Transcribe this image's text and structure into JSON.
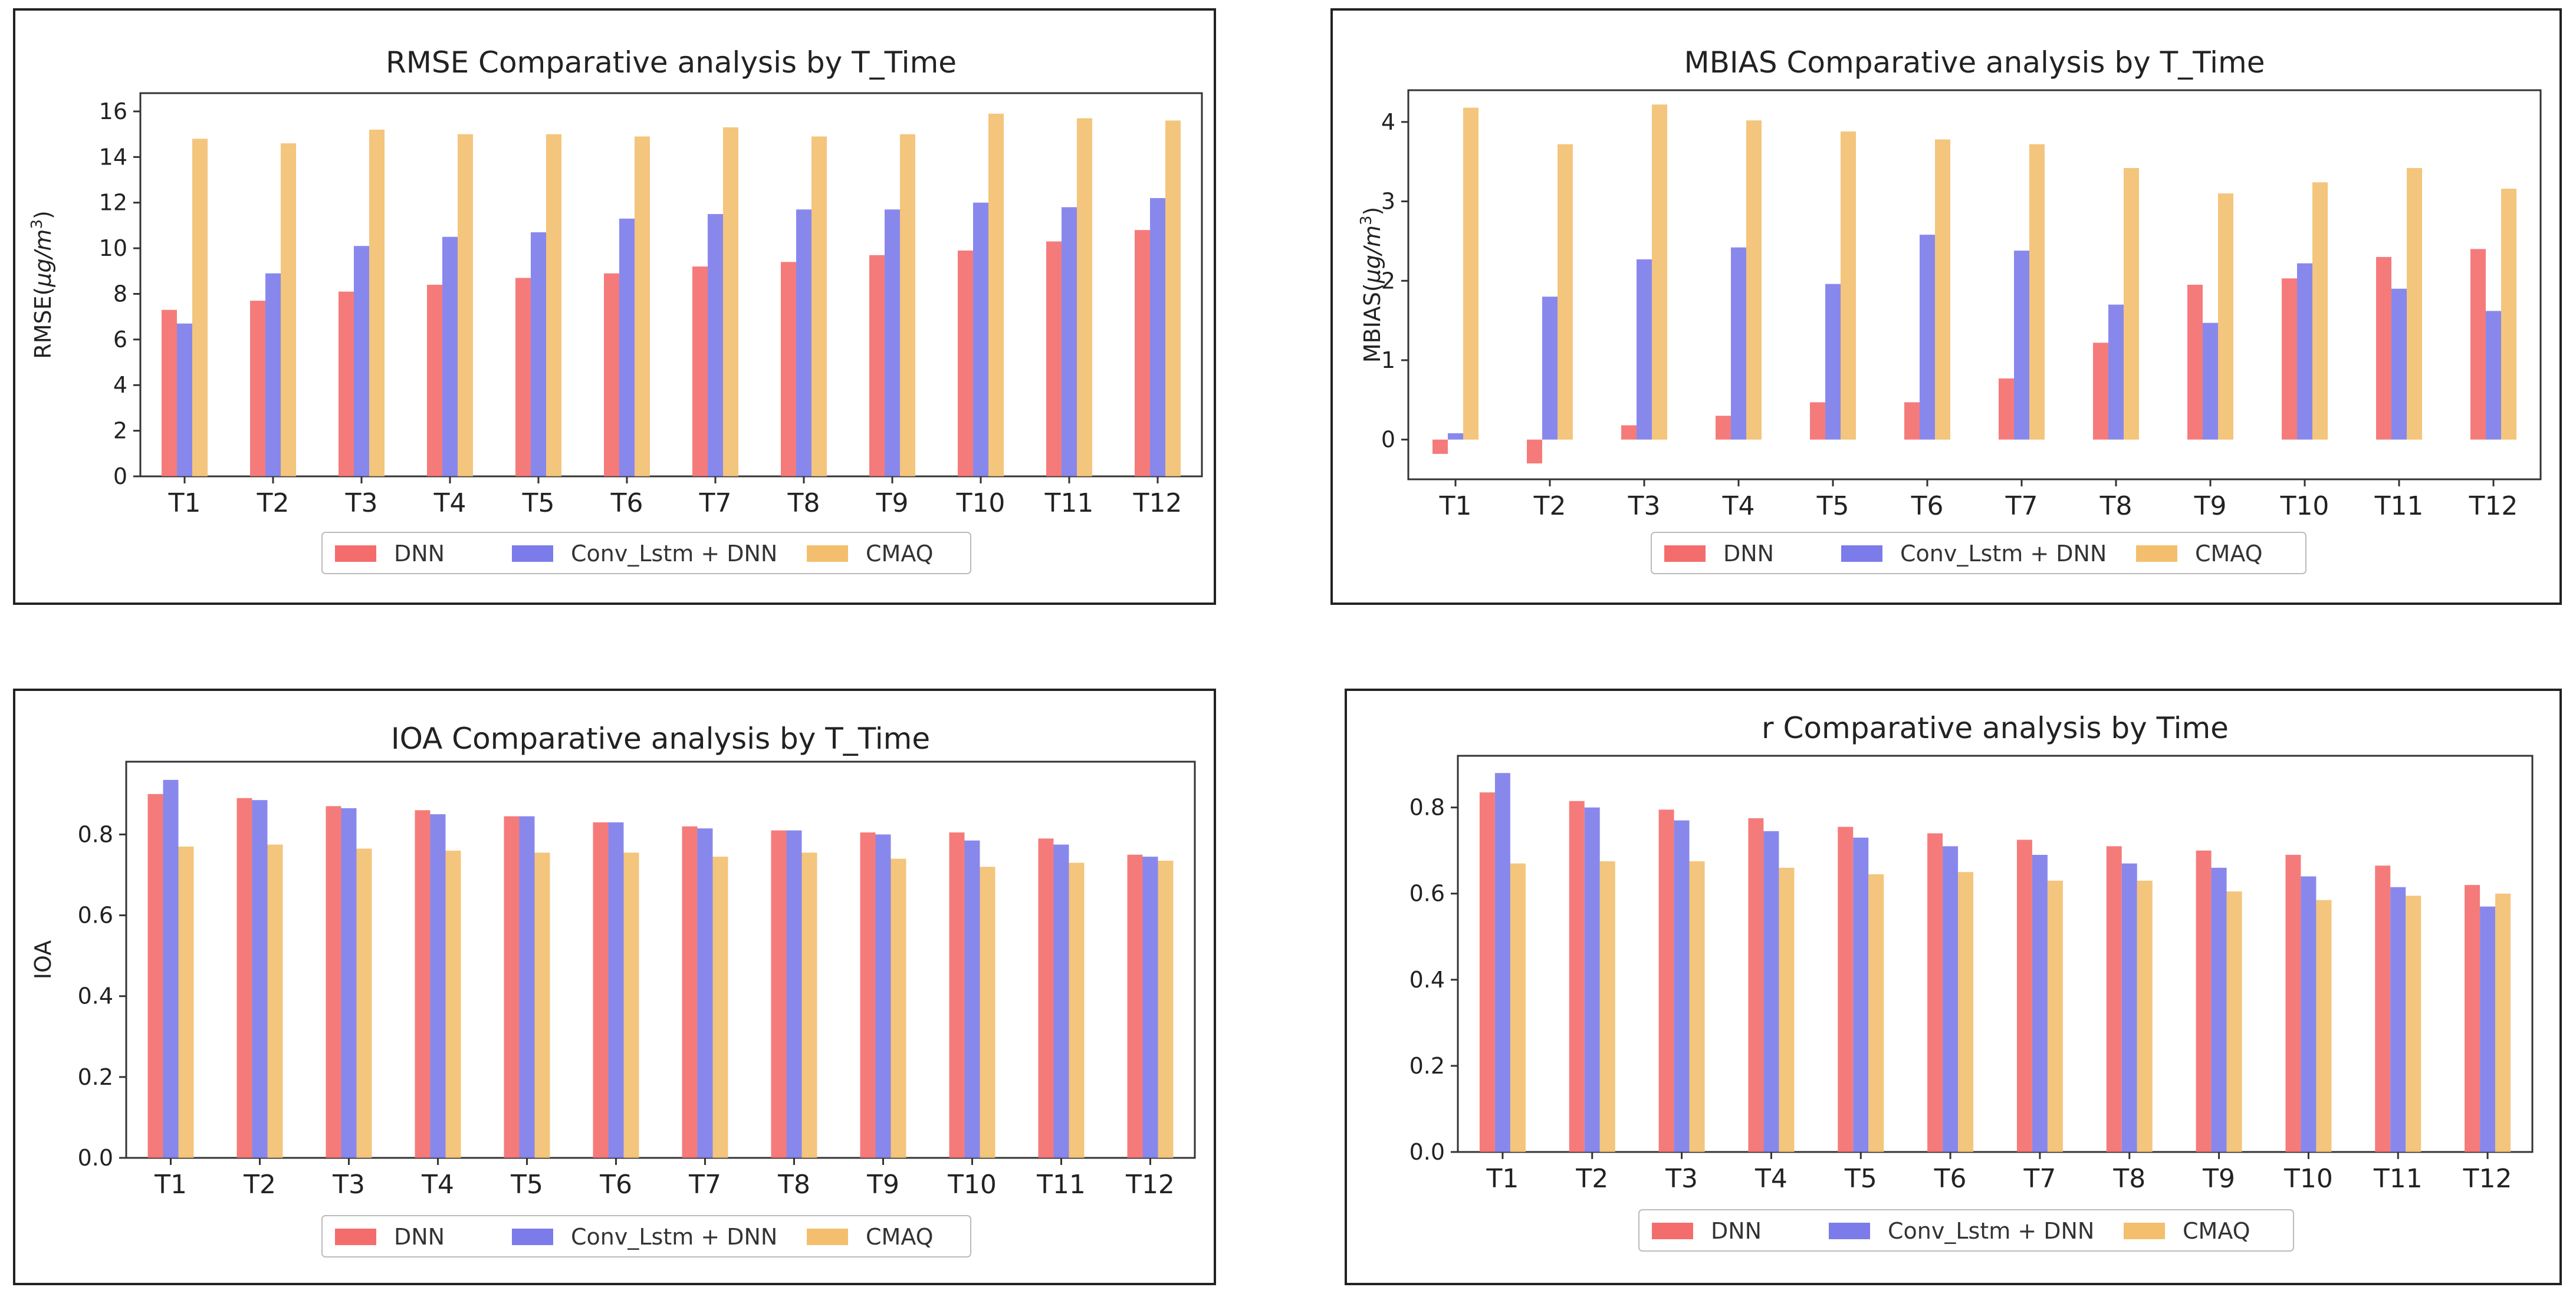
{
  "colors": {
    "DNN": "#f46d6d",
    "Conv_Lstm + DNN": "#7b7bea",
    "CMAQ": "#f3bf6e"
  },
  "chart_data": [
    {
      "type": "bar",
      "title": "RMSE Comparative analysis by T_Time",
      "xlabel": "",
      "ylabel": "RMSE(μg/m³)",
      "ylabel_text": "RMSE(",
      "ylabel_italic": "μg/m",
      "ylabel_sup": "3",
      "ylabel_close": ")",
      "ylim": [
        0,
        16.8
      ],
      "yticks": [
        0,
        2,
        4,
        6,
        8,
        10,
        12,
        14,
        16
      ],
      "ytick_labels": [
        "0",
        "2",
        "4",
        "6",
        "8",
        "10",
        "12",
        "14",
        "16"
      ],
      "categories": [
        "T1",
        "T2",
        "T3",
        "T4",
        "T5",
        "T6",
        "T7",
        "T8",
        "T9",
        "T10",
        "T11",
        "T12"
      ],
      "series": [
        {
          "name": "DNN",
          "values": [
            7.3,
            7.7,
            8.1,
            8.4,
            8.7,
            8.9,
            9.2,
            9.4,
            9.7,
            9.9,
            10.3,
            10.8
          ]
        },
        {
          "name": "Conv_Lstm + DNN",
          "values": [
            6.7,
            8.9,
            10.1,
            10.5,
            10.7,
            11.3,
            11.5,
            11.7,
            11.7,
            12.0,
            11.8,
            12.2
          ]
        },
        {
          "name": "CMAQ",
          "values": [
            14.8,
            14.6,
            15.2,
            15.0,
            15.0,
            14.9,
            15.3,
            14.9,
            15.0,
            15.9,
            15.7,
            15.6
          ]
        }
      ],
      "legend": [
        "DNN",
        "Conv_Lstm + DNN",
        "CMAQ"
      ],
      "legend_position": "bottom"
    },
    {
      "type": "bar",
      "title": "MBIAS Comparative analysis by T_Time",
      "xlabel": "",
      "ylabel": "MBIAS(μg/m³)",
      "ylabel_text": "MBIAS(",
      "ylabel_italic": "μg/m",
      "ylabel_sup": "3",
      "ylabel_close": ")",
      "ylim": [
        -0.5,
        4.4
      ],
      "yticks": [
        0,
        1,
        2,
        3,
        4
      ],
      "ytick_labels": [
        "0",
        "1",
        "2",
        "3",
        "4"
      ],
      "categories": [
        "T1",
        "T2",
        "T3",
        "T4",
        "T5",
        "T6",
        "T7",
        "T8",
        "T9",
        "T10",
        "T11",
        "T12"
      ],
      "series": [
        {
          "name": "DNN",
          "values": [
            -0.18,
            -0.3,
            0.18,
            0.3,
            0.47,
            0.47,
            0.77,
            1.22,
            1.95,
            2.03,
            2.3,
            2.4
          ]
        },
        {
          "name": "Conv_Lstm + DNN",
          "values": [
            0.08,
            1.8,
            2.27,
            2.42,
            1.96,
            2.58,
            2.38,
            1.7,
            1.47,
            2.22,
            1.9,
            1.62
          ]
        },
        {
          "name": "CMAQ",
          "values": [
            4.18,
            3.72,
            4.22,
            4.02,
            3.88,
            3.78,
            3.72,
            3.42,
            3.1,
            3.24,
            3.42,
            3.16
          ]
        }
      ],
      "legend": [
        "DNN",
        "Conv_Lstm + DNN",
        "CMAQ"
      ],
      "legend_position": "bottom"
    },
    {
      "type": "bar",
      "title": "IOA Comparative analysis by T_Time",
      "xlabel": "",
      "ylabel": "IOA",
      "ylabel_text": "IOA",
      "ylim": [
        0,
        0.98
      ],
      "yticks": [
        0,
        0.2,
        0.4,
        0.6,
        0.8
      ],
      "ytick_labels": [
        "0.0",
        "0.2",
        "0.4",
        "0.6",
        "0.8"
      ],
      "categories": [
        "T1",
        "T2",
        "T3",
        "T4",
        "T5",
        "T6",
        "T7",
        "T8",
        "T9",
        "T10",
        "T11",
        "T12"
      ],
      "series": [
        {
          "name": "DNN",
          "values": [
            0.9,
            0.89,
            0.87,
            0.86,
            0.845,
            0.83,
            0.82,
            0.81,
            0.805,
            0.805,
            0.79,
            0.75
          ]
        },
        {
          "name": "Conv_Lstm + DNN",
          "values": [
            0.935,
            0.885,
            0.865,
            0.85,
            0.845,
            0.83,
            0.815,
            0.81,
            0.8,
            0.785,
            0.775,
            0.745
          ]
        },
        {
          "name": "CMAQ",
          "values": [
            0.77,
            0.775,
            0.765,
            0.76,
            0.755,
            0.755,
            0.745,
            0.755,
            0.74,
            0.72,
            0.73,
            0.735
          ]
        }
      ],
      "legend": [
        "DNN",
        "Conv_Lstm + DNN",
        "CMAQ"
      ],
      "legend_position": "bottom"
    },
    {
      "type": "bar",
      "title": "r Comparative analysis by Time",
      "xlabel": "",
      "ylabel": "",
      "ylim": [
        0,
        0.92
      ],
      "yticks": [
        0,
        0.2,
        0.4,
        0.6,
        0.8
      ],
      "ytick_labels": [
        "0.0",
        "0.2",
        "0.4",
        "0.6",
        "0.8"
      ],
      "categories": [
        "T1",
        "T2",
        "T3",
        "T4",
        "T5",
        "T6",
        "T7",
        "T8",
        "T9",
        "T10",
        "T11",
        "T12"
      ],
      "series": [
        {
          "name": "DNN",
          "values": [
            0.835,
            0.815,
            0.795,
            0.775,
            0.755,
            0.74,
            0.725,
            0.71,
            0.7,
            0.69,
            0.665,
            0.62
          ]
        },
        {
          "name": "Conv_Lstm + DNN",
          "values": [
            0.88,
            0.8,
            0.77,
            0.745,
            0.73,
            0.71,
            0.69,
            0.67,
            0.66,
            0.64,
            0.615,
            0.57
          ]
        },
        {
          "name": "CMAQ",
          "values": [
            0.67,
            0.675,
            0.675,
            0.66,
            0.645,
            0.65,
            0.63,
            0.63,
            0.605,
            0.585,
            0.595,
            0.6
          ]
        }
      ],
      "legend": [
        "DNN",
        "Conv_Lstm + DNN",
        "CMAQ"
      ],
      "legend_position": "bottom"
    }
  ]
}
